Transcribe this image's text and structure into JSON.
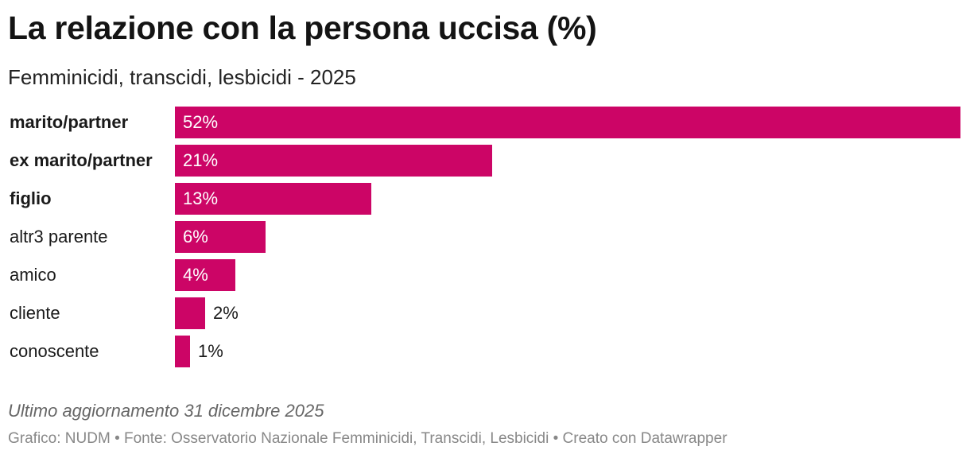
{
  "chart_data": {
    "type": "bar",
    "orientation": "horizontal",
    "title": "La relazione con la persona uccisa (%)",
    "subtitle": "Femminicidi, transcidi, lesbicidi - 2025",
    "unit": "%",
    "categories": [
      "marito/partner",
      "ex marito/partner",
      "figlio",
      "altr3 parente",
      "amico",
      "cliente",
      "conoscente"
    ],
    "values": [
      52,
      21,
      13,
      6,
      4,
      2,
      1
    ],
    "value_labels": [
      "52%",
      "21%",
      "13%",
      "6%",
      "4%",
      "2%",
      "1%"
    ],
    "bold_categories": [
      "marito/partner",
      "ex marito/partner",
      "figlio"
    ],
    "xlim": [
      0,
      52
    ],
    "bar_color": "#cc0566",
    "notes": "Ultimo aggiornamento 31 dicembre 2025",
    "footer": "Grafico: NUDM • Fonte: Osservatorio Nazionale Femminicidi, Transcidi, Lesbicidi • Creato con Datawrapper"
  }
}
